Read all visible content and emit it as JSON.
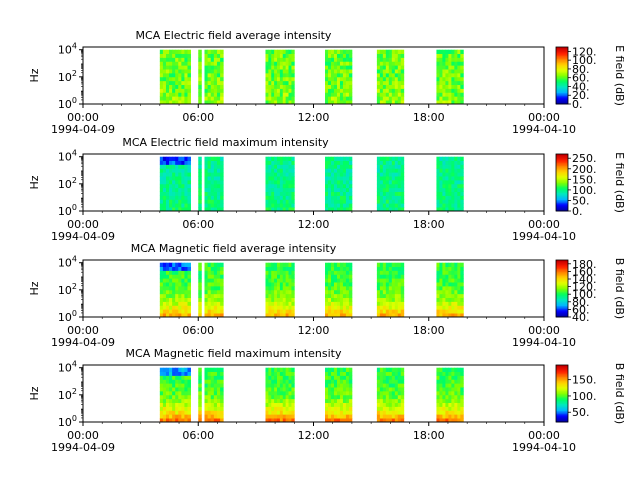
{
  "time_axis": {
    "ticks": [
      "00:00",
      "06:00",
      "12:00",
      "18:00",
      "00:00"
    ],
    "date_start": "1994-04-09",
    "date_end": "1994-04-10",
    "range_hours": [
      0,
      24
    ]
  },
  "colormap": [
    "#0000a0",
    "#0000ff",
    "#00b4ff",
    "#00e8c0",
    "#00ff60",
    "#80ff00",
    "#e0ff00",
    "#ffd000",
    "#ff8000",
    "#ff2000",
    "#c80000"
  ],
  "chart_data": [
    {
      "type": "heatmap",
      "title": "MCA  Electric field average intensity",
      "ylabel": "Hz",
      "y_ticks": [
        "10^0",
        "10^2",
        "10^4"
      ],
      "ylim_log10": [
        0,
        4.2
      ],
      "colorbar": {
        "label": "E field (dB)",
        "ticks": [
          "0.",
          "20.",
          "40.",
          "60.",
          "80.",
          "100.",
          "120."
        ],
        "range": [
          0,
          130
        ]
      },
      "intervals_hours": [
        [
          4.0,
          5.6
        ],
        [
          6.0,
          7.3
        ],
        [
          9.5,
          11.0
        ],
        [
          12.6,
          14.0
        ],
        [
          15.3,
          16.7
        ],
        [
          18.4,
          19.8
        ]
      ],
      "base_level": 62,
      "low_freq_boost": 5,
      "variation": 12
    },
    {
      "type": "heatmap",
      "title": "MCA  Electric field maximum intensity",
      "ylabel": "Hz",
      "y_ticks": [
        "10^0",
        "10^2",
        "10^4"
      ],
      "ylim_log10": [
        0,
        4.2
      ],
      "colorbar": {
        "label": "E field (dB)",
        "ticks": [
          "0.",
          "50.",
          "100.",
          "150.",
          "200.",
          "250."
        ],
        "range": [
          0,
          270
        ]
      },
      "intervals_hours": [
        [
          4.0,
          5.6
        ],
        [
          6.0,
          7.3
        ],
        [
          9.5,
          11.0
        ],
        [
          12.6,
          14.0
        ],
        [
          15.3,
          16.7
        ],
        [
          18.4,
          19.8
        ]
      ],
      "base_level": 95,
      "low_freq_boost": 8,
      "variation": 18
    },
    {
      "type": "heatmap",
      "title": "MCA  Magnetic field average intensity",
      "ylabel": "Hz",
      "y_ticks": [
        "10^0",
        "10^2",
        "10^4"
      ],
      "ylim_log10": [
        0,
        4.2
      ],
      "colorbar": {
        "label": "B field (dB)",
        "ticks": [
          "40.",
          "60.",
          "80.",
          "100.",
          "120.",
          "140.",
          "160.",
          "180."
        ],
        "range": [
          40,
          190
        ]
      },
      "intervals_hours": [
        [
          4.0,
          5.6
        ],
        [
          6.0,
          7.3
        ],
        [
          9.5,
          11.0
        ],
        [
          12.6,
          14.0
        ],
        [
          15.3,
          16.7
        ],
        [
          18.4,
          19.8
        ]
      ],
      "base_level": 105,
      "low_freq_boost": 45,
      "variation": 10
    },
    {
      "type": "heatmap",
      "title": "MCA  Magnetic field maximum intensity",
      "ylabel": "Hz",
      "y_ticks": [
        "10^0",
        "10^2",
        "10^4"
      ],
      "ylim_log10": [
        0,
        4.2
      ],
      "colorbar": {
        "label": "B field (dB)",
        "ticks": [
          "50.",
          "100.",
          "150."
        ],
        "range": [
          20,
          195
        ]
      },
      "intervals_hours": [
        [
          4.0,
          5.6
        ],
        [
          6.0,
          7.3
        ],
        [
          9.5,
          11.0
        ],
        [
          12.6,
          14.0
        ],
        [
          15.3,
          16.7
        ],
        [
          18.4,
          19.8
        ]
      ],
      "base_level": 95,
      "low_freq_boost": 65,
      "variation": 12
    }
  ]
}
